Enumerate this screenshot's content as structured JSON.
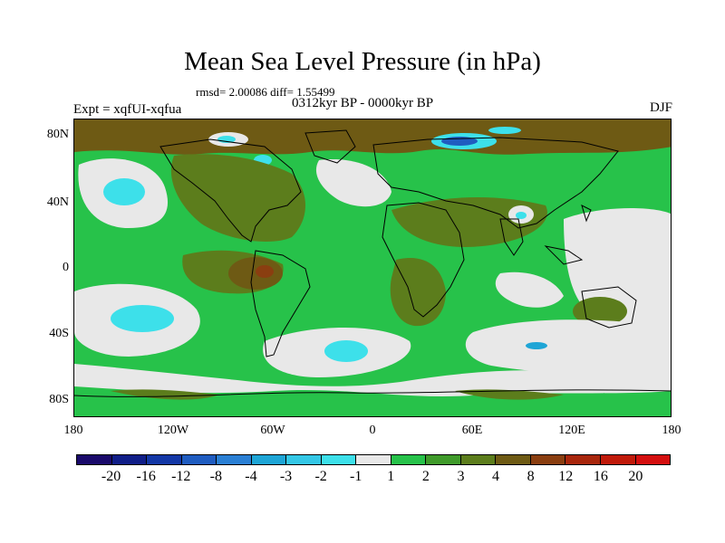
{
  "title": "Mean Sea Level Pressure (in hPa)",
  "stats": "rmsd= 2.00086 diff= 1.55499",
  "experiment": "Expt = xqfUI-xqfua",
  "period": "0312kyr BP - 0000kyr BP",
  "season": "DJF",
  "y_axis_labels": [
    "80N",
    "40N",
    "0",
    "40S",
    "80S"
  ],
  "x_axis_labels": [
    "180",
    "120W",
    "60W",
    "0",
    "60E",
    "120E",
    "180"
  ],
  "colorbar": {
    "labels": [
      "-20",
      "-16",
      "-12",
      "-8",
      "-4",
      "-3",
      "-2",
      "-1",
      "1",
      "2",
      "3",
      "4",
      "8",
      "12",
      "16",
      "20"
    ],
    "colors": [
      "#1a0a6b",
      "#101e88",
      "#1337a6",
      "#1f5cc0",
      "#2a7fd4",
      "#1ea5d6",
      "#34c7e6",
      "#3de0ea",
      "#e8e8e8",
      "#27c24a",
      "#3f9a2a",
      "#5c7d1c",
      "#6e5a14",
      "#8a3e10",
      "#a8260c",
      "#c01a0a",
      "#d40f0f"
    ]
  },
  "map_colors": {
    "near_zero": "#e8e8e8",
    "positive_1_2": "#27c24a",
    "positive_3": "#3f9a2a",
    "positive_4": "#5c7d1c",
    "positive_8": "#6e5a14",
    "negative_3": "#3de0ea",
    "negative_4": "#1ea5d6"
  }
}
